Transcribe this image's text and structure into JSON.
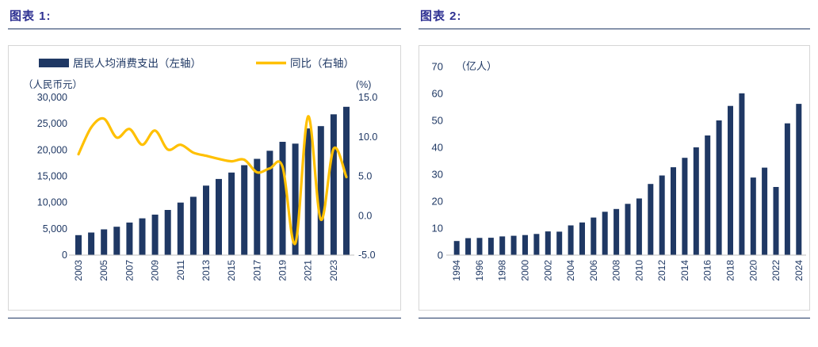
{
  "accent": {
    "title_color": "#2E3192",
    "rule_color": "#1F3864",
    "bar_color": "#1F3864",
    "line_color": "#FFC000",
    "text_color": "#1F3864",
    "axis_line_color": "#BFBFBF"
  },
  "chart_data": [
    {
      "type": "bar+line",
      "title": "图表 1:",
      "categories": [
        "2003",
        "2004",
        "2005",
        "2006",
        "2007",
        "2008",
        "2009",
        "2010",
        "2011",
        "2012",
        "2013",
        "2014",
        "2015",
        "2016",
        "2017",
        "2018",
        "2019",
        "2020",
        "2021",
        "2022",
        "2023",
        "2024"
      ],
      "x_labels_every": 2,
      "series": [
        {
          "name": "居民人均消费支出（左轴）",
          "type": "bar",
          "axis": "left",
          "color": "#1F3864",
          "values": [
            3800,
            4300,
            4900,
            5400,
            6200,
            7000,
            7700,
            8600,
            10000,
            11100,
            13220,
            14491,
            15712,
            17111,
            18322,
            19853,
            21559,
            21210,
            24100,
            24538,
            26796,
            28227
          ]
        },
        {
          "name": "同比（右轴）",
          "type": "line",
          "axis": "right",
          "color": "#FFC000",
          "values": [
            7.8,
            11.2,
            12.3,
            9.9,
            11.0,
            9.0,
            10.8,
            8.4,
            9.0,
            8.0,
            7.6,
            7.2,
            6.9,
            7.1,
            5.5,
            6.0,
            6.2,
            -3.5,
            12.6,
            -0.5,
            8.5,
            4.9
          ]
        }
      ],
      "left_axis": {
        "label": "（人民币元）",
        "min": 0,
        "max": 30000,
        "step": 5000
      },
      "right_axis": {
        "label": "(%)",
        "min": -5,
        "max": 15,
        "step": 5
      },
      "grid": false,
      "legend_position": "top"
    },
    {
      "type": "bar",
      "title": "图表 2:",
      "unit_label": "（亿人）",
      "categories": [
        "1994",
        "1995",
        "1996",
        "1997",
        "1998",
        "1999",
        "2000",
        "2001",
        "2002",
        "2003",
        "2004",
        "2005",
        "2006",
        "2007",
        "2008",
        "2009",
        "2010",
        "2011",
        "2012",
        "2013",
        "2014",
        "2015",
        "2016",
        "2017",
        "2018",
        "2019",
        "2020",
        "2021",
        "2022",
        "2023",
        "2024"
      ],
      "x_labels_every": 2,
      "values": [
        5.24,
        6.29,
        6.39,
        6.44,
        6.94,
        7.19,
        7.44,
        7.84,
        8.78,
        8.7,
        11.02,
        12.12,
        13.94,
        16.1,
        17.12,
        19.02,
        21.03,
        26.41,
        29.57,
        32.62,
        36.11,
        40.0,
        44.4,
        50.01,
        55.39,
        60.06,
        28.79,
        32.46,
        25.3,
        48.91,
        56.15
      ],
      "y_axis": {
        "min": 0,
        "max": 70,
        "step": 10
      },
      "grid": false,
      "legend_position": "none"
    }
  ]
}
